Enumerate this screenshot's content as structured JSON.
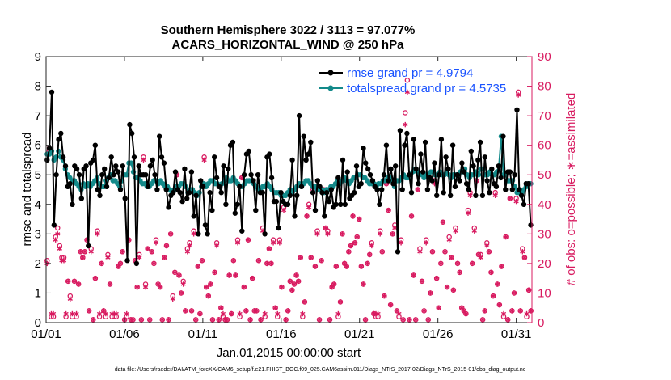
{
  "chart_data": {
    "type": "line",
    "title_line1": "Southern Hemisphere 3022 / 3113 = 97.077%",
    "title_line2": "ACARS_HORIZONTAL_WIND @ 250 hPa",
    "xlabel": "Jan.01,2015 00:00:00 start",
    "ylabel_left": "rmse and totalspread",
    "ylabel_right": "# of obs: o=possible; ∗=assimilated",
    "xlim": [
      1,
      32
    ],
    "ylim_left": [
      0,
      9
    ],
    "ylim_right": [
      0,
      90
    ],
    "x_ticks": [
      1,
      6,
      11,
      16,
      21,
      26,
      31
    ],
    "x_tick_labels": [
      "01/01",
      "01/06",
      "01/11",
      "01/16",
      "01/21",
      "01/26",
      "01/31"
    ],
    "y_ticks_left": [
      "0",
      "1",
      "2",
      "3",
      "4",
      "5",
      "6",
      "7",
      "8",
      "9"
    ],
    "y_ticks_right": [
      "0",
      "10",
      "20",
      "30",
      "40",
      "50",
      "60",
      "70",
      "80",
      "90"
    ],
    "footnote": "data file: /Users/raeder/DAI/ATM_forcXX/CAM6_setup/f.e21.FHIST_BGC.f09_025.CAM6assim.011/Diags_NTrS_2017-02/Diags_NTrS_2015-01/obs_diag_output.nc",
    "colors": {
      "rmse": "#000000",
      "spread": "#138a8a",
      "obs": "#d81b60",
      "legend_text": "#1a53ff"
    },
    "series": [
      {
        "name": "rmse grand pr = 4.9794",
        "values": [
          5.5,
          5.9,
          7.8,
          3.3,
          5.0,
          6.2,
          6.4,
          5.6,
          5.3,
          4.6,
          4.7,
          4.0,
          5.3,
          5.2,
          5.0,
          4.2,
          5.2,
          5.3,
          2.6,
          5.4,
          5.5,
          6.0,
          4.5,
          4.3,
          5.0,
          5.2,
          4.6,
          4.9,
          5.6,
          5.0,
          5.3,
          5.1,
          4.5,
          5.3,
          4.2,
          2.1,
          6.7,
          6.4,
          5.6,
          2.0,
          5.3,
          5.0,
          5.0,
          5.0,
          4.6,
          5.3,
          5.5,
          5.0,
          4.5,
          6.3,
          5.6,
          5.4,
          4.5,
          3.9,
          4.3,
          4.4,
          5.1,
          4.5,
          4.4,
          4.1,
          5.2,
          4.2,
          4.4,
          5.1,
          3.6,
          4.3,
          3.0,
          4.8,
          4.6,
          3.3,
          3.0,
          4.4,
          3.8,
          5.6,
          4.9,
          4.6,
          4.4,
          5.3,
          4.0,
          5.2,
          6.0,
          6.1,
          3.7,
          4.0,
          4.6,
          3.1,
          5.0,
          5.7,
          5.8,
          5.0,
          4.8,
          3.8,
          5.0,
          4.4,
          4.4,
          3.0,
          5.6,
          5.7,
          4.9,
          4.1,
          4.1,
          3.2,
          4.4,
          4.1,
          4.0,
          4.0,
          4.3,
          5.5,
          3.6,
          4.3,
          7.0,
          4.6,
          6.3,
          5.5,
          5.7,
          6.1,
          4.4,
          3.8,
          4.8,
          4.6,
          4.4,
          3.6,
          4.4,
          4.1,
          4.5,
          3.9,
          4.0,
          4.9,
          4.0,
          5.5,
          4.0,
          5.1,
          4.2,
          4.3,
          4.4,
          5.3,
          4.6,
          4.7,
          5.9,
          5.4,
          5.2,
          5.0,
          4.8,
          4.6,
          4.5,
          4.0,
          4.5,
          5.0,
          6.0,
          4.8,
          5.2,
          4.7,
          5.3,
          2.4,
          6.5,
          4.5,
          6.0,
          6.4,
          5.0,
          4.4,
          6.2,
          5.2,
          4.7,
          5.7,
          5.1,
          6.1,
          4.5,
          4.9,
          4.8,
          5.4,
          4.3,
          5.0,
          6.2,
          4.4,
          5.6,
          5.2,
          4.3,
          6.0,
          4.6,
          5.0,
          4.8,
          5.4,
          5.1,
          4.7,
          4.5,
          5.8,
          5.3,
          4.3,
          5.5,
          6.1,
          4.3,
          5.6,
          4.8,
          4.4,
          5.2,
          4.7,
          4.6,
          5.3,
          4.9,
          6.3,
          4.5,
          5.1,
          5.1,
          4.5,
          5.0,
          7.2,
          4.5,
          4.3,
          4.0,
          4.7,
          4.7,
          3.3
        ]
      },
      {
        "name": "totalspread grand pr = 4.5735",
        "values": [
          5.7,
          5.7,
          5.8,
          5.5,
          5.6,
          5.8,
          5.6,
          5.5,
          5.2,
          5.0,
          4.9,
          4.8,
          4.8,
          4.7,
          4.6,
          4.5,
          4.7,
          4.6,
          4.7,
          4.6,
          4.7,
          4.8,
          4.9,
          4.7,
          4.6,
          4.6,
          4.8,
          4.9,
          5.0,
          4.8,
          4.8,
          4.7,
          4.6,
          4.8,
          5.0,
          5.0,
          5.4,
          5.4,
          5.1,
          4.9,
          4.9,
          4.8,
          4.7,
          4.7,
          4.6,
          4.6,
          4.7,
          4.8,
          4.8,
          4.7,
          4.8,
          4.7,
          4.6,
          4.6,
          4.5,
          4.4,
          4.5,
          4.6,
          4.6,
          4.7,
          4.7,
          4.6,
          4.4,
          4.5,
          4.5,
          4.4,
          4.3,
          4.4,
          4.6,
          4.7,
          4.6,
          4.7,
          4.8,
          4.8,
          4.7,
          4.7,
          4.6,
          4.7,
          4.8,
          4.9,
          4.8,
          4.8,
          4.9,
          4.8,
          4.7,
          4.6,
          4.6,
          4.7,
          4.8,
          4.8,
          4.8,
          4.7,
          4.6,
          4.5,
          4.5,
          4.6,
          4.6,
          4.7,
          4.6,
          4.5,
          4.4,
          4.4,
          4.4,
          4.3,
          4.3,
          4.3,
          4.4,
          4.5,
          4.4,
          4.5,
          4.6,
          4.7,
          4.7,
          4.7,
          4.8,
          4.8,
          4.7,
          4.6,
          4.6,
          4.5,
          4.5,
          4.5,
          4.4,
          4.5,
          4.5,
          4.6,
          4.6,
          4.7,
          4.8,
          4.7,
          4.8,
          4.9,
          4.8,
          4.7,
          4.8,
          4.9,
          4.9,
          5.0,
          5.0,
          4.9,
          4.9,
          4.8,
          4.7,
          4.7,
          4.7,
          4.6,
          4.7,
          4.7,
          4.8,
          4.8,
          4.9,
          4.9,
          4.8,
          4.6,
          4.8,
          4.8,
          4.9,
          5.0,
          4.9,
          4.9,
          5.0,
          5.1,
          5.2,
          5.1,
          5.0,
          5.0,
          4.9,
          5.0,
          5.0,
          5.1,
          5.1,
          5.0,
          5.0,
          5.1,
          5.0,
          5.0,
          5.1,
          5.0,
          4.9,
          5.0,
          5.0,
          5.0,
          5.1,
          5.1,
          5.2,
          5.0,
          4.9,
          5.0,
          5.0,
          5.1,
          5.0,
          5.2,
          5.2,
          5.0,
          5.0,
          5.1,
          5.0,
          5.0,
          5.1,
          5.3,
          6.3,
          5.0,
          5.0,
          4.8,
          4.8,
          4.8,
          4.6,
          4.4,
          4.4,
          4.4,
          4.5,
          4.6,
          4.7,
          4.7
        ]
      }
    ],
    "obs_possible": [
      21,
      58,
      2,
      2,
      29,
      32,
      26,
      22,
      22,
      2,
      14,
      9,
      2,
      14,
      2,
      13,
      24,
      22,
      24,
      28,
      4,
      25,
      1,
      15,
      31,
      2,
      20,
      4,
      2,
      23,
      13,
      2,
      2,
      2,
      19,
      20,
      24,
      1,
      2,
      28,
      1,
      1,
      21,
      12,
      23,
      1,
      56,
      13,
      25,
      1,
      24,
      20,
      28,
      13,
      12,
      1,
      22,
      26,
      1,
      30,
      9,
      17,
      50,
      16,
      10,
      14,
      4,
      25,
      27,
      4,
      31,
      1,
      19,
      3,
      21,
      56,
      12,
      9,
      13,
      1,
      17,
      27,
      1,
      5,
      2,
      1,
      1,
      16,
      3,
      21,
      16,
      28,
      2,
      49,
      12,
      4,
      28,
      1,
      15,
      4,
      4,
      21,
      1,
      32,
      2,
      20,
      25,
      20,
      28,
      5,
      2,
      28,
      12,
      39,
      1,
      4,
      14,
      11,
      13,
      16,
      14,
      22,
      2,
      7,
      36,
      40,
      22,
      45,
      19,
      31,
      1,
      21,
      45,
      32,
      31,
      1,
      12,
      13,
      19,
      2,
      7,
      30,
      20,
      19,
      24,
      26,
      36,
      27,
      29,
      35,
      19,
      13,
      1,
      20,
      23,
      27,
      3,
      2,
      2,
      31,
      24,
      9,
      47,
      38,
      6,
      30,
      33,
      4,
      2,
      28,
      1,
      71,
      82,
      1,
      36,
      16,
      1,
      45,
      25,
      14,
      4,
      28,
      1,
      10,
      24,
      48,
      15,
      5,
      20,
      34,
      24,
      12,
      29,
      22,
      11,
      32,
      20,
      17,
      5,
      4,
      3,
      38,
      44,
      20,
      32,
      48,
      23,
      23,
      1,
      4,
      27,
      24,
      17,
      9,
      44,
      13,
      6,
      19,
      2,
      29,
      1,
      42,
      4,
      10,
      42,
      78,
      4,
      25,
      22,
      2,
      11,
      4
    ],
    "obs_assimilated": [
      20,
      59,
      3,
      3,
      28,
      30,
      25,
      21,
      21,
      3,
      14,
      8,
      3,
      14,
      3,
      13,
      24,
      22,
      24,
      28,
      4,
      24,
      1,
      15,
      30,
      3,
      20,
      4,
      3,
      22,
      13,
      3,
      3,
      3,
      19,
      20,
      24,
      1,
      3,
      28,
      1,
      1,
      21,
      12,
      22,
      1,
      55,
      12,
      25,
      1,
      24,
      20,
      27,
      13,
      12,
      1,
      22,
      26,
      1,
      30,
      8,
      17,
      50,
      16,
      10,
      13,
      4,
      24,
      26,
      4,
      30,
      1,
      19,
      3,
      21,
      55,
      12,
      9,
      13,
      1,
      17,
      26,
      1,
      5,
      3,
      1,
      1,
      16,
      3,
      21,
      16,
      27,
      3,
      49,
      12,
      4,
      28,
      1,
      15,
      4,
      4,
      21,
      1,
      31,
      3,
      20,
      25,
      20,
      27,
      5,
      3,
      27,
      12,
      38,
      1,
      4,
      14,
      11,
      13,
      16,
      14,
      22,
      3,
      7,
      36,
      39,
      22,
      44,
      19,
      30,
      1,
      21,
      44,
      32,
      30,
      1,
      12,
      13,
      19,
      3,
      7,
      30,
      20,
      19,
      24,
      26,
      36,
      27,
      29,
      35,
      19,
      13,
      1,
      20,
      23,
      26,
      3,
      3,
      3,
      30,
      24,
      9,
      47,
      38,
      6,
      30,
      32,
      4,
      3,
      27,
      1,
      67,
      78,
      1,
      36,
      16,
      1,
      45,
      24,
      14,
      4,
      27,
      1,
      10,
      24,
      47,
      15,
      5,
      20,
      34,
      24,
      12,
      28,
      22,
      11,
      31,
      20,
      17,
      5,
      4,
      3,
      37,
      43,
      20,
      31,
      48,
      23,
      22,
      1,
      4,
      26,
      24,
      17,
      9,
      43,
      13,
      6,
      19,
      3,
      29,
      1,
      42,
      4,
      10,
      41,
      77,
      4,
      24,
      22,
      3,
      11,
      4
    ]
  }
}
